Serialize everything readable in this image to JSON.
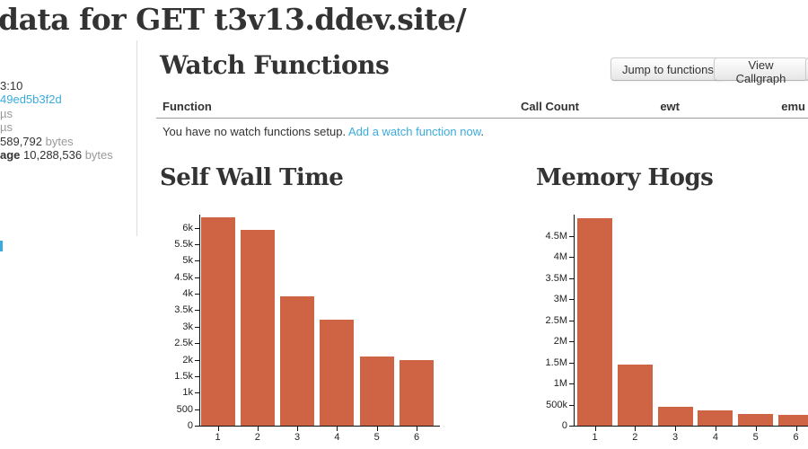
{
  "page": {
    "title": "data for GET t3v13.ddev.site/"
  },
  "sidebar": {
    "lines": [
      [
        {
          "t": "3:10",
          "s": "text"
        }
      ],
      [
        {
          "t": "49ed5b3f2d",
          "s": "link"
        }
      ],
      [
        {
          "t": "µs",
          "s": "muted"
        }
      ],
      [
        {
          "t": "µs",
          "s": "muted"
        }
      ],
      [
        {
          "t": "589,792 ",
          "s": "text"
        },
        {
          "t": "bytes",
          "s": "muted"
        }
      ],
      [
        {
          "t": "age ",
          "s": "bold"
        },
        {
          "t": "10,288,536 ",
          "s": "text"
        },
        {
          "t": "bytes",
          "s": "muted"
        }
      ]
    ]
  },
  "watch": {
    "heading": "Watch Functions",
    "buttons": {
      "jump": "Jump to functions",
      "callgraph": "View Callgraph"
    },
    "columns": [
      "Function",
      "Call Count",
      "ewt",
      "emu"
    ],
    "empty": {
      "text": "You have no watch functions setup. ",
      "link": "Add a watch function now",
      "after": "."
    }
  },
  "chart_data": [
    {
      "type": "bar",
      "title": "Self Wall Time",
      "xlabel": "",
      "ylabel": "",
      "categories": [
        "1",
        "2",
        "3",
        "4",
        "5",
        "6"
      ],
      "values": [
        6320,
        5950,
        3930,
        3220,
        2110,
        1990
      ],
      "ylim": [
        0,
        6400
      ],
      "yticks": [
        {
          "v": 0,
          "label": "0"
        },
        {
          "v": 500,
          "label": "500"
        },
        {
          "v": 1000,
          "label": "1k"
        },
        {
          "v": 1500,
          "label": "1.5k"
        },
        {
          "v": 2000,
          "label": "2k"
        },
        {
          "v": 2500,
          "label": "2.5k"
        },
        {
          "v": 3000,
          "label": "3k"
        },
        {
          "v": 3500,
          "label": "3.5k"
        },
        {
          "v": 4000,
          "label": "4k"
        },
        {
          "v": 4500,
          "label": "4.5k"
        },
        {
          "v": 5000,
          "label": "5k"
        },
        {
          "v": 5500,
          "label": "5.5k"
        },
        {
          "v": 6000,
          "label": "6k"
        }
      ],
      "grid": false,
      "legend": "none"
    },
    {
      "type": "bar",
      "title": "Memory Hogs",
      "xlabel": "",
      "ylabel": "",
      "categories": [
        "1",
        "2",
        "3",
        "4",
        "5",
        "6"
      ],
      "values": [
        4920000,
        1460000,
        440000,
        360000,
        280000,
        260000
      ],
      "ylim": [
        0,
        5010000
      ],
      "yticks": [
        {
          "v": 0,
          "label": "0"
        },
        {
          "v": 500000,
          "label": "500k"
        },
        {
          "v": 1000000,
          "label": "1M"
        },
        {
          "v": 1500000,
          "label": "1.5M"
        },
        {
          "v": 2000000,
          "label": "2M"
        },
        {
          "v": 2500000,
          "label": "2.5M"
        },
        {
          "v": 3000000,
          "label": "3M"
        },
        {
          "v": 3500000,
          "label": "3.5M"
        },
        {
          "v": 4000000,
          "label": "4M"
        },
        {
          "v": 4500000,
          "label": "4.5M"
        }
      ],
      "grid": false,
      "legend": "none"
    }
  ],
  "colors": {
    "bar": "#cf6444",
    "link": "#3aabdf",
    "heading": "#333333",
    "muted": "#999999",
    "axis": "#111111",
    "divider": "#dddddd"
  }
}
